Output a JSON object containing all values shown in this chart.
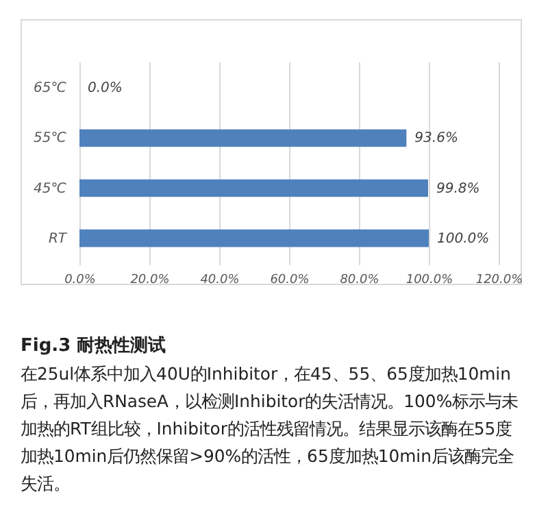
{
  "chart_data": {
    "type": "bar",
    "orientation": "horizontal",
    "title": "Fig.3 耐热性测试",
    "annotations": [
      "在25ul体系中加入40U的Inhibitor，在45、55、65度加热10min后，再加入RNaseA，以检测Inhibitor的失活情况。100%标示与未加热的RT组比较，Inhibitor的活性残留情况。结果显示该酶在55度加热10min后仍然保留>90%的活性，65度加热10min后该酶完全失活。"
    ],
    "categories": [
      "65℃",
      "55℃",
      "45℃",
      "RT"
    ],
    "values": [
      0,
      93.6,
      99.8,
      100
    ],
    "value_labels": [
      "0.0%",
      "93.6%",
      "99.8%",
      "100.0%"
    ],
    "color": "#4f81bd",
    "xlim": [
      0,
      120
    ],
    "xticks": [
      {
        "value": 0,
        "label": "0.0%"
      },
      {
        "value": 20,
        "label": "20.0%"
      },
      {
        "value": 40,
        "label": "40.0%"
      },
      {
        "value": 60,
        "label": "60.0%"
      },
      {
        "value": 80,
        "label": "80.0%"
      },
      {
        "value": 100,
        "label": "100.0%"
      },
      {
        "value": 120,
        "label": "120.0%"
      }
    ],
    "grid": "x"
  }
}
